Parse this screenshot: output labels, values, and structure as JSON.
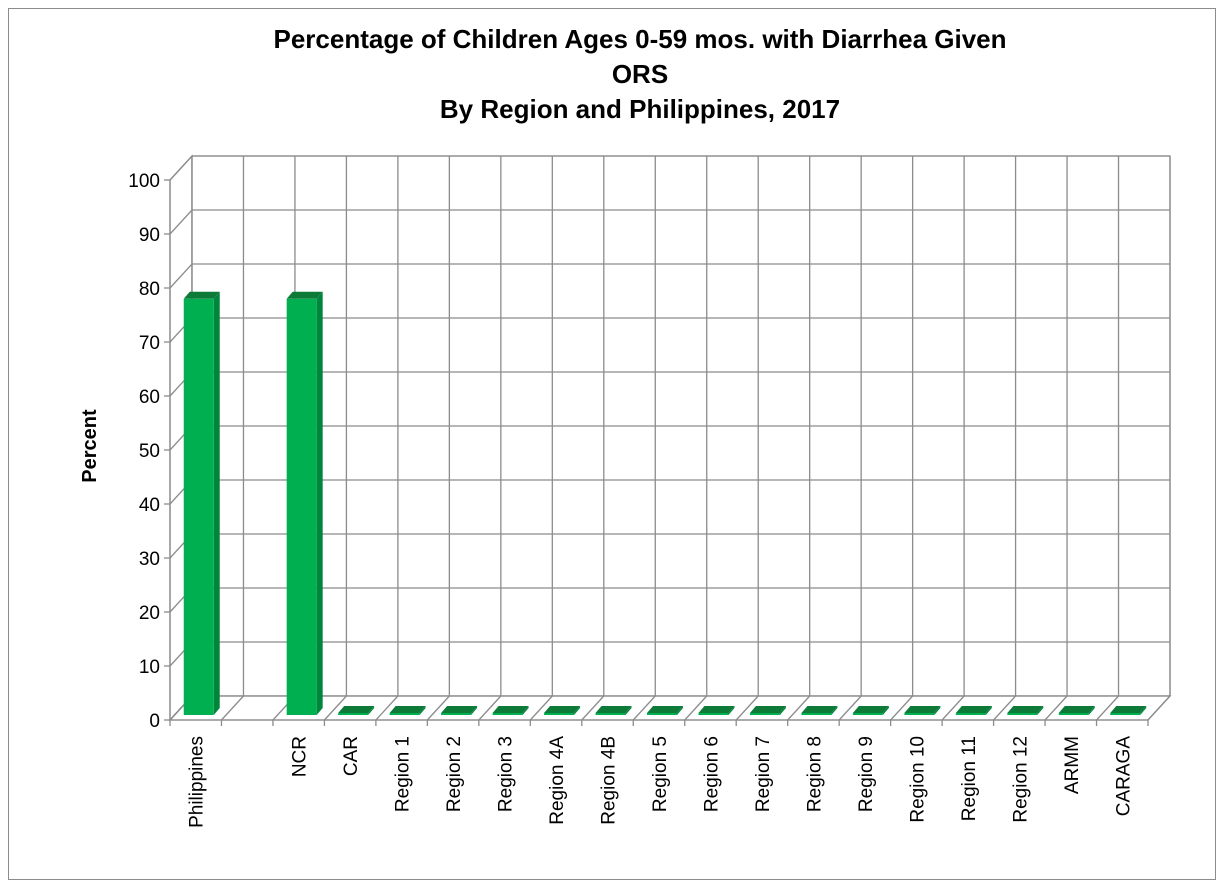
{
  "chart_data": {
    "type": "bar",
    "title_lines": [
      "Percentage of Children Ages 0-59 mos. with Diarrhea Given",
      "ORS",
      "By Region and Philippines, 2017"
    ],
    "xlabel": "",
    "ylabel": "Percent",
    "ylim": [
      0,
      100
    ],
    "yticks": [
      0,
      10,
      20,
      30,
      40,
      50,
      60,
      70,
      80,
      90,
      100
    ],
    "grid": true,
    "legend": "none",
    "style": "3d-column",
    "bar_color": "#00b050",
    "categories": [
      "Philippines",
      "",
      "NCR",
      "CAR",
      "Region 1",
      "Region 2",
      "Region 3",
      "Region 4A",
      "Region 4B",
      "Region 5",
      "Region 6",
      "Region 7",
      "Region 8",
      "Region 9",
      "Region 10",
      "Region 11",
      "Region 12",
      "ARMM",
      "CARAGA"
    ],
    "values": [
      78,
      null,
      78,
      0,
      0,
      0,
      0,
      0,
      0,
      0,
      0,
      0,
      0,
      0,
      0,
      0,
      0,
      0,
      0
    ]
  }
}
